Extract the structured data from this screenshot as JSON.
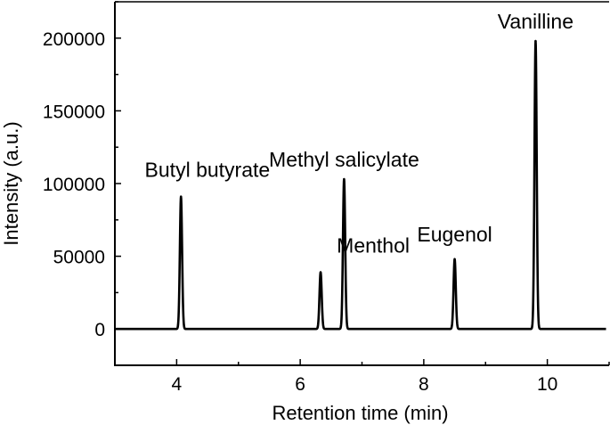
{
  "chart_data": {
    "type": "line",
    "title": "",
    "xlabel": "Retention time (min)",
    "ylabel": "Intensity (a.u.)",
    "xlim": [
      3,
      11
    ],
    "ylim": [
      -25000,
      225000
    ],
    "x_ticks": [
      4,
      6,
      8,
      10
    ],
    "y_ticks": [
      0,
      50000,
      100000,
      150000,
      200000
    ],
    "x_tick_labels": [
      "4",
      "6",
      "8",
      "10"
    ],
    "y_tick_labels": [
      "0",
      "50000",
      "100000",
      "150000",
      "200000"
    ],
    "grid": false,
    "legend": "none",
    "color": "#000000",
    "series": [
      {
        "baseline": 0,
        "peaks": [
          {
            "label": "Butyl butyrate",
            "x": 4.07,
            "y": 91000
          },
          {
            "label": "Menthol",
            "x": 6.33,
            "y": 39000
          },
          {
            "label": "Methyl salicylate",
            "x": 6.71,
            "y": 103000
          },
          {
            "label": "Eugenol",
            "x": 8.5,
            "y": 48000
          },
          {
            "label": "Vanilline",
            "x": 9.81,
            "y": 198000
          }
        ]
      }
    ]
  }
}
